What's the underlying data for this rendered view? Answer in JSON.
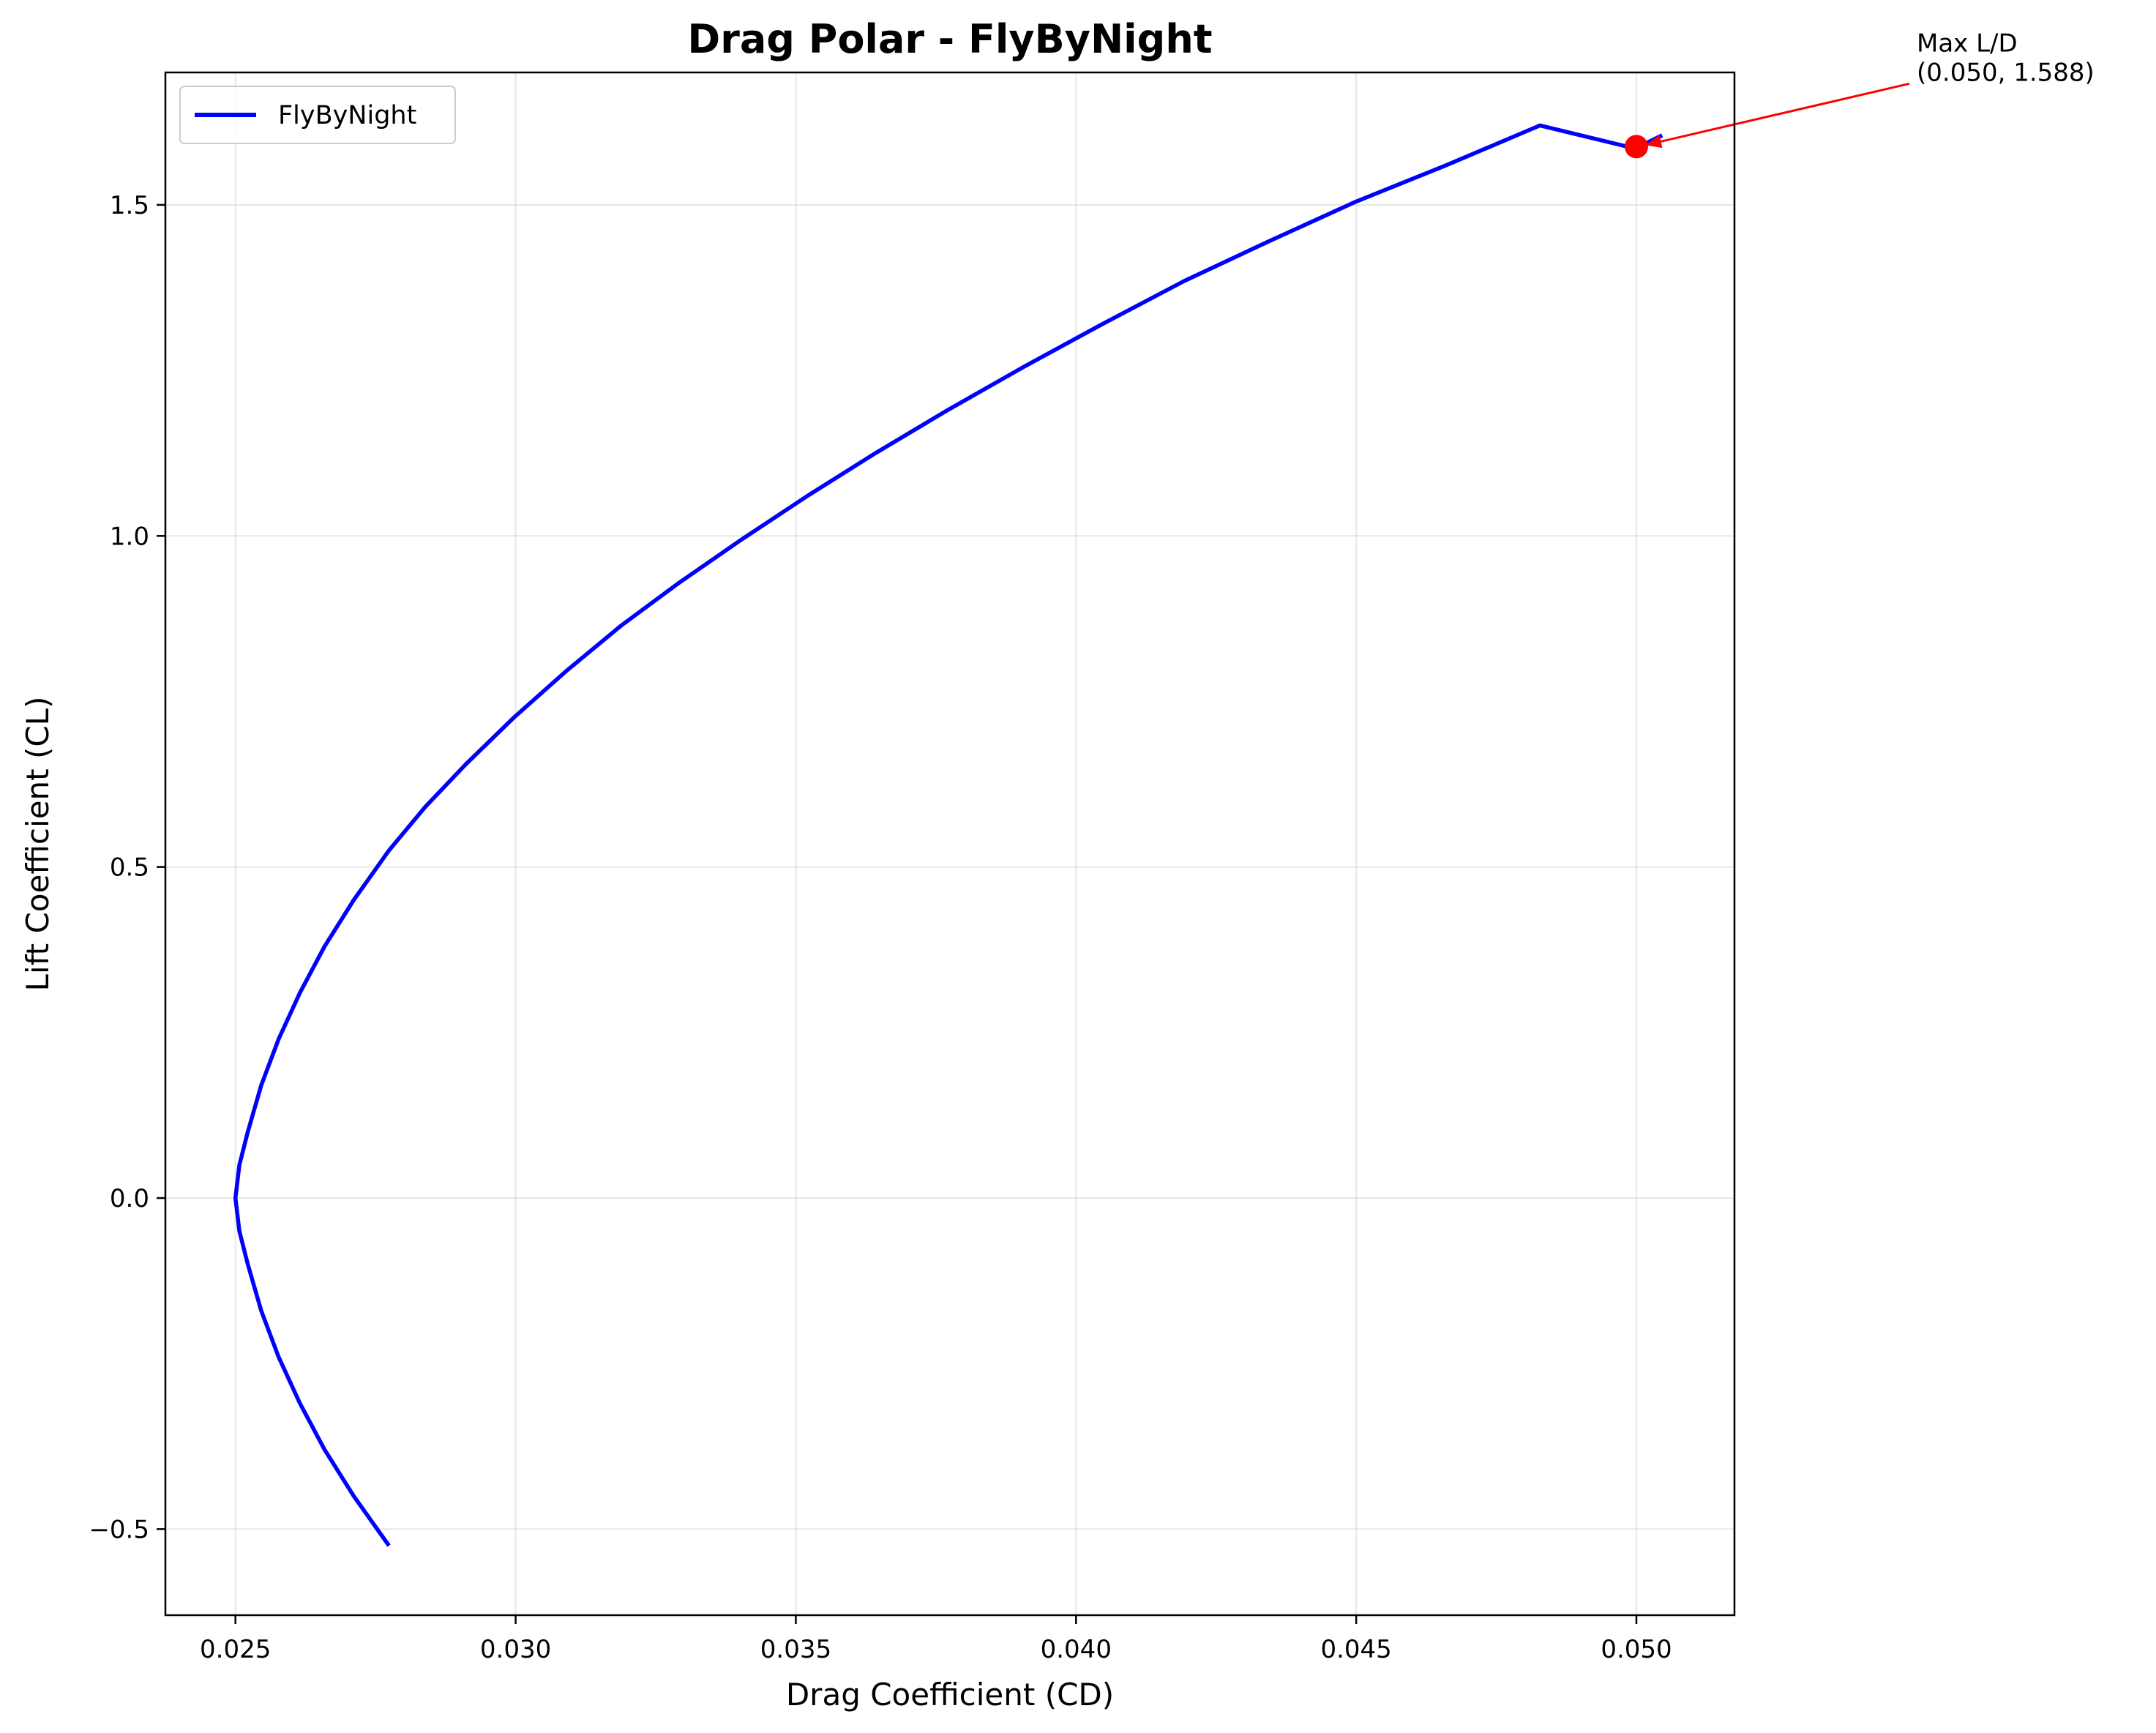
{
  "chart_data": {
    "type": "line",
    "title": "Drag Polar - FlyByNight",
    "xlabel": "Drag Coefficient (CD)",
    "ylabel": "Lift Coefficient (CL)",
    "xlim": [
      0.02375,
      0.05175
    ],
    "ylim": [
      -0.63,
      1.7
    ],
    "xticks": [
      0.025,
      0.03,
      0.035,
      0.04,
      0.045,
      0.05
    ],
    "xtick_labels": [
      "0.025",
      "0.030",
      "0.035",
      "0.040",
      "0.045",
      "0.050"
    ],
    "yticks": [
      -0.5,
      0.0,
      0.5,
      1.0,
      1.5
    ],
    "ytick_labels": [
      "−0.5",
      "0.0",
      "0.5",
      "1.0",
      "1.5"
    ],
    "grid": true,
    "legend_position": "top-left",
    "series": [
      {
        "name": "FlyByNight",
        "color": "#0000ff",
        "x": [
          0.02774,
          0.02711,
          0.02659,
          0.02615,
          0.02577,
          0.02546,
          0.02522,
          0.02507,
          0.025,
          0.02507,
          0.02522,
          0.02546,
          0.02577,
          0.02615,
          0.02659,
          0.02711,
          0.02774,
          0.02838,
          0.02911,
          0.02996,
          0.03089,
          0.03189,
          0.03293,
          0.03404,
          0.0352,
          0.03642,
          0.03771,
          0.03906,
          0.04047,
          0.04193,
          0.04344,
          0.045,
          0.04661,
          0.04828,
          0.04998,
          0.05046
        ],
        "y": [
          -0.525,
          -0.45,
          -0.38,
          -0.31,
          -0.24,
          -0.17,
          -0.1,
          -0.05,
          0.0,
          0.05,
          0.1,
          0.17,
          0.24,
          0.31,
          0.38,
          0.45,
          0.525,
          0.59,
          0.655,
          0.725,
          0.795,
          0.865,
          0.93,
          0.995,
          1.06,
          1.125,
          1.19,
          1.255,
          1.32,
          1.385,
          1.445,
          1.505,
          1.56,
          1.62,
          1.585,
          1.605
        ]
      }
    ],
    "highlight": {
      "x": 0.05,
      "y": 1.588,
      "color": "#ff0000",
      "label_line1": "Max L/D",
      "label_line2": "(0.050, 1.588)"
    }
  }
}
